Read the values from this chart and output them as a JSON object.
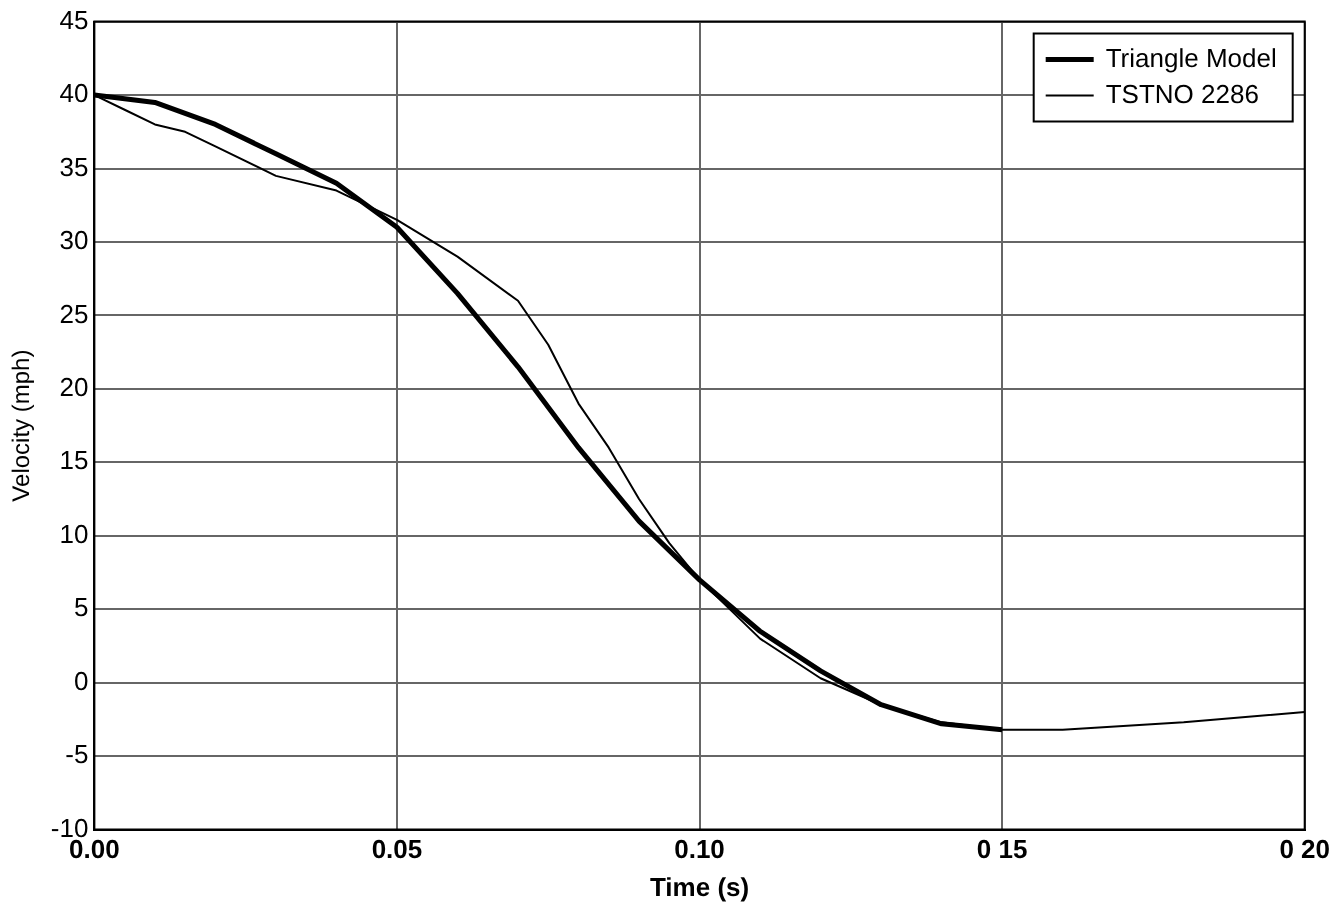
{
  "chart_data": {
    "type": "line",
    "xlabel": "Time (s)",
    "ylabel": "Velocity (mph)",
    "xlim": [
      0,
      0.2
    ],
    "xticks": [
      {
        "value": 0,
        "label": "0.00"
      },
      {
        "value": 0.05,
        "label": "0.05"
      },
      {
        "value": 0.1,
        "label": "0.10"
      },
      {
        "value": 0.15,
        "label": "0 15"
      },
      {
        "value": 0.2,
        "label": "0 20"
      }
    ],
    "ylim": [
      -10,
      45
    ],
    "yticks": [
      -10,
      -5,
      0,
      5,
      10,
      15,
      20,
      25,
      30,
      35,
      40,
      45
    ],
    "grid": true,
    "legend": "top right",
    "marker": "none",
    "line_style": "solid",
    "series": [
      {
        "name": "Triangle Model",
        "color": "#000000",
        "x": [
          0,
          0.01,
          0.02,
          0.03,
          0.04,
          0.05,
          0.06,
          0.07,
          0.08,
          0.09,
          0.1,
          0.11,
          0.12,
          0.13,
          0.14,
          0.15
        ],
        "values": [
          40,
          39.5,
          38,
          36,
          34,
          31,
          26.5,
          21.5,
          16,
          11,
          7,
          3.5,
          0.8,
          -1.5,
          -2.8,
          -3.2
        ]
      },
      {
        "name": "TSTNO 2286",
        "color": "#000000",
        "x": [
          0,
          0.005,
          0.01,
          0.015,
          0.02,
          0.03,
          0.04,
          0.05,
          0.06,
          0.07,
          0.075,
          0.08,
          0.085,
          0.09,
          0.095,
          0.1,
          0.11,
          0.12,
          0.13,
          0.14,
          0.15,
          0.16,
          0.18,
          0.2
        ],
        "values": [
          40,
          39,
          38,
          37.5,
          36.5,
          34.5,
          33.5,
          31.5,
          29,
          26,
          23,
          19,
          16,
          12.5,
          9.5,
          7,
          3,
          0.3,
          -1.5,
          -2.7,
          -3.2,
          -3.2,
          -2.7,
          -2
        ]
      }
    ]
  }
}
